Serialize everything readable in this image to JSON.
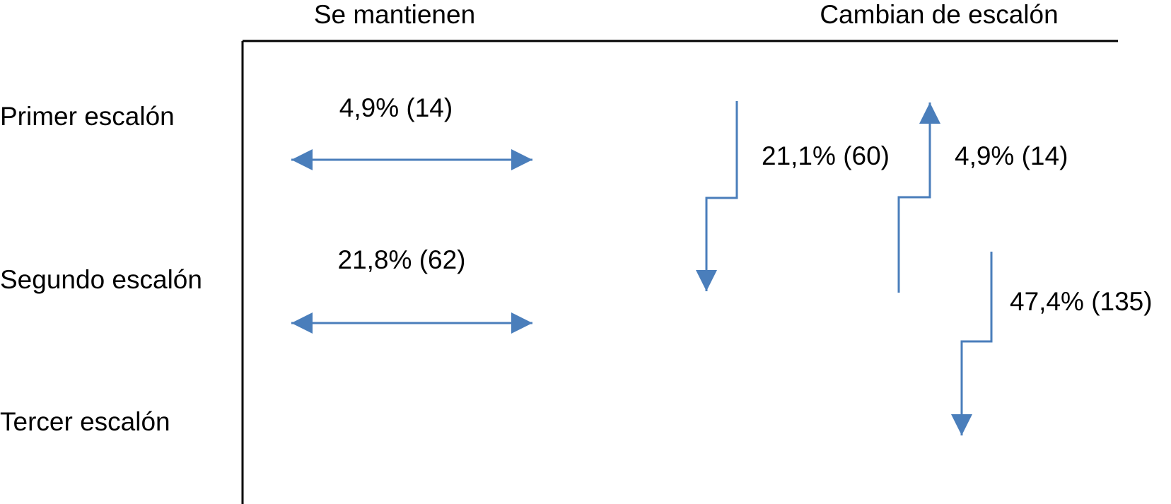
{
  "header": {
    "columns": [
      "Se mantienen",
      "Cambian de escalón"
    ]
  },
  "rows": [
    "Primer escalón",
    "Segundo escalón",
    "Tercer escalón"
  ],
  "arrows": [
    {
      "label": "4,9% (14)"
    },
    {
      "label": "21,8% (62)"
    },
    {
      "label": "21,1% (60)"
    },
    {
      "label": "4,9% (14)"
    },
    {
      "label": "47,4% (135)"
    }
  ]
}
